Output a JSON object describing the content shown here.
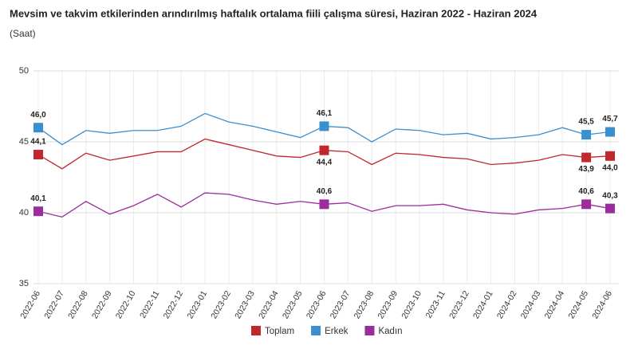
{
  "chart_data": {
    "type": "line",
    "title": "Mevsim ve takvim etkilerinden arındırılmış haftalık ortalama fiili çalışma süresi, Haziran 2022 - Haziran 2024",
    "subtitle": "(Saat)",
    "categories": [
      "2022-06",
      "2022-07",
      "2022-08",
      "2022-09",
      "2022-10",
      "2022-11",
      "2022-12",
      "2023-01",
      "2023-02",
      "2023-03",
      "2023-04",
      "2023-05",
      "2023-06",
      "2023-07",
      "2023-08",
      "2023-09",
      "2023-10",
      "2023-11",
      "2023-12",
      "2024-01",
      "2024-02",
      "2024-03",
      "2024-04",
      "2024-05",
      "2024-06"
    ],
    "series": [
      {
        "name": "Toplam",
        "color": "#c0282d",
        "values": [
          44.1,
          43.1,
          44.2,
          43.7,
          44.0,
          44.3,
          44.3,
          45.2,
          44.8,
          44.4,
          44.0,
          43.9,
          44.4,
          44.3,
          43.4,
          44.2,
          44.1,
          43.9,
          43.8,
          43.4,
          43.5,
          43.7,
          44.1,
          43.9,
          44.0
        ],
        "value_labels": [
          "44,1",
          null,
          null,
          null,
          null,
          null,
          null,
          null,
          null,
          null,
          null,
          null,
          "44,4",
          null,
          null,
          null,
          null,
          null,
          null,
          null,
          null,
          null,
          null,
          "43,9",
          "44,0"
        ]
      },
      {
        "name": "Erkek",
        "color": "#3a8fcf",
        "values": [
          46.0,
          44.8,
          45.8,
          45.6,
          45.8,
          45.8,
          46.1,
          47.0,
          46.4,
          46.1,
          45.7,
          45.3,
          46.1,
          46.0,
          45.0,
          45.9,
          45.8,
          45.5,
          45.6,
          45.2,
          45.3,
          45.5,
          46.0,
          45.5,
          45.7
        ],
        "value_labels": [
          "46,0",
          null,
          null,
          null,
          null,
          null,
          null,
          null,
          null,
          null,
          null,
          null,
          "46,1",
          null,
          null,
          null,
          null,
          null,
          null,
          null,
          null,
          null,
          null,
          "45,5",
          "45,7"
        ]
      },
      {
        "name": "Kadın",
        "color": "#9b2c9b",
        "values": [
          40.1,
          39.7,
          40.8,
          39.9,
          40.5,
          41.3,
          40.4,
          41.4,
          41.3,
          40.9,
          40.6,
          40.8,
          40.6,
          40.7,
          40.1,
          40.5,
          40.5,
          40.6,
          40.2,
          40.0,
          39.9,
          40.2,
          40.3,
          40.6,
          40.3
        ],
        "value_labels": [
          "40,1",
          null,
          null,
          null,
          null,
          null,
          null,
          null,
          null,
          null,
          null,
          null,
          "40,6",
          null,
          null,
          null,
          null,
          null,
          null,
          null,
          null,
          null,
          null,
          "40,6",
          "40,3"
        ]
      }
    ],
    "ylim": [
      35,
      50
    ],
    "yticks": [
      35,
      40,
      45,
      50
    ],
    "grid": true
  }
}
